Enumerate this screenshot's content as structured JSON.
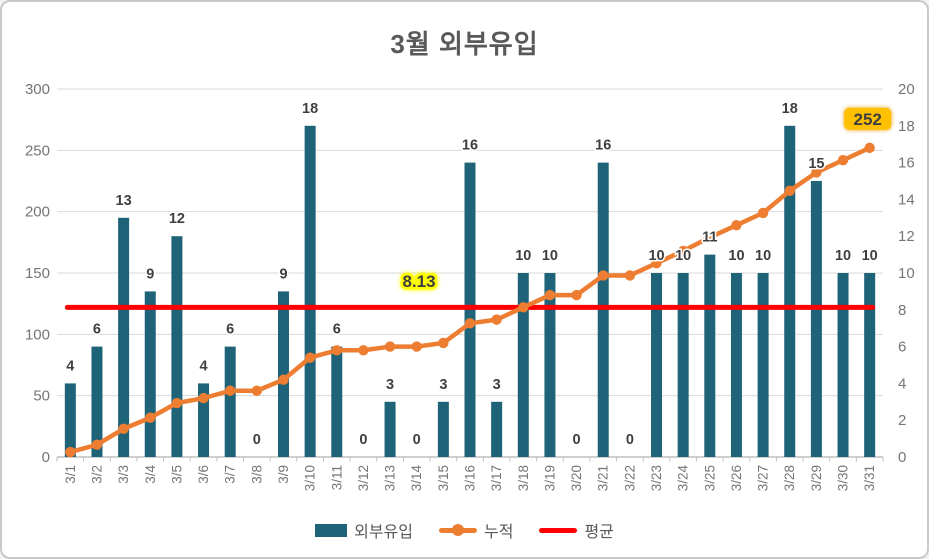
{
  "chart_data": {
    "type": "bar",
    "title": "3월 외부유입",
    "categories": [
      "3/1",
      "3/2",
      "3/3",
      "3/4",
      "3/5",
      "3/6",
      "3/7",
      "3/8",
      "3/9",
      "3/10",
      "3/11",
      "3/12",
      "3/13",
      "3/14",
      "3/15",
      "3/16",
      "3/17",
      "3/18",
      "3/19",
      "3/20",
      "3/21",
      "3/22",
      "3/23",
      "3/24",
      "3/25",
      "3/26",
      "3/27",
      "3/28",
      "3/29",
      "3/30",
      "3/31"
    ],
    "series": [
      {
        "name": "외부유입",
        "type": "bar",
        "axis": "right",
        "color": "#1F6379",
        "values": [
          4,
          6,
          13,
          9,
          12,
          4,
          6,
          0,
          9,
          18,
          6,
          0,
          3,
          0,
          3,
          16,
          3,
          10,
          10,
          0,
          16,
          0,
          10,
          10,
          11,
          10,
          10,
          18,
          15,
          10,
          10
        ]
      },
      {
        "name": "누적",
        "type": "line",
        "axis": "left",
        "color": "#ED7D31",
        "values": [
          4,
          10,
          23,
          32,
          44,
          48,
          54,
          54,
          63,
          81,
          87,
          87,
          90,
          90,
          93,
          109,
          112,
          122,
          132,
          132,
          148,
          148,
          158,
          168,
          179,
          189,
          199,
          217,
          232,
          242,
          252
        ]
      },
      {
        "name": "평균",
        "type": "line",
        "axis": "right",
        "color": "#FF0000",
        "value": 8.13
      }
    ],
    "left_axis": {
      "min": 0,
      "max": 300,
      "ticks": [
        0,
        50,
        100,
        150,
        200,
        250,
        300
      ]
    },
    "right_axis": {
      "min": 0,
      "max": 20,
      "ticks": [
        0,
        2,
        4,
        6,
        8,
        10,
        12,
        14,
        16,
        18,
        20
      ]
    },
    "annotations": {
      "average_label": "8.13",
      "total_label": "252"
    },
    "legend_position": "bottom",
    "grid": true,
    "colors": {
      "grid": "#D9D9D9",
      "axis_line": "#BFBFBF",
      "axis_text": "#757575",
      "label_text": "#3F3F3F",
      "title_text": "#595959",
      "halo": "#FFFFFF",
      "highlight_yellow": "#FFFF00",
      "badge_gold": "#FFC000",
      "badge_glow": "#E89C00"
    }
  }
}
